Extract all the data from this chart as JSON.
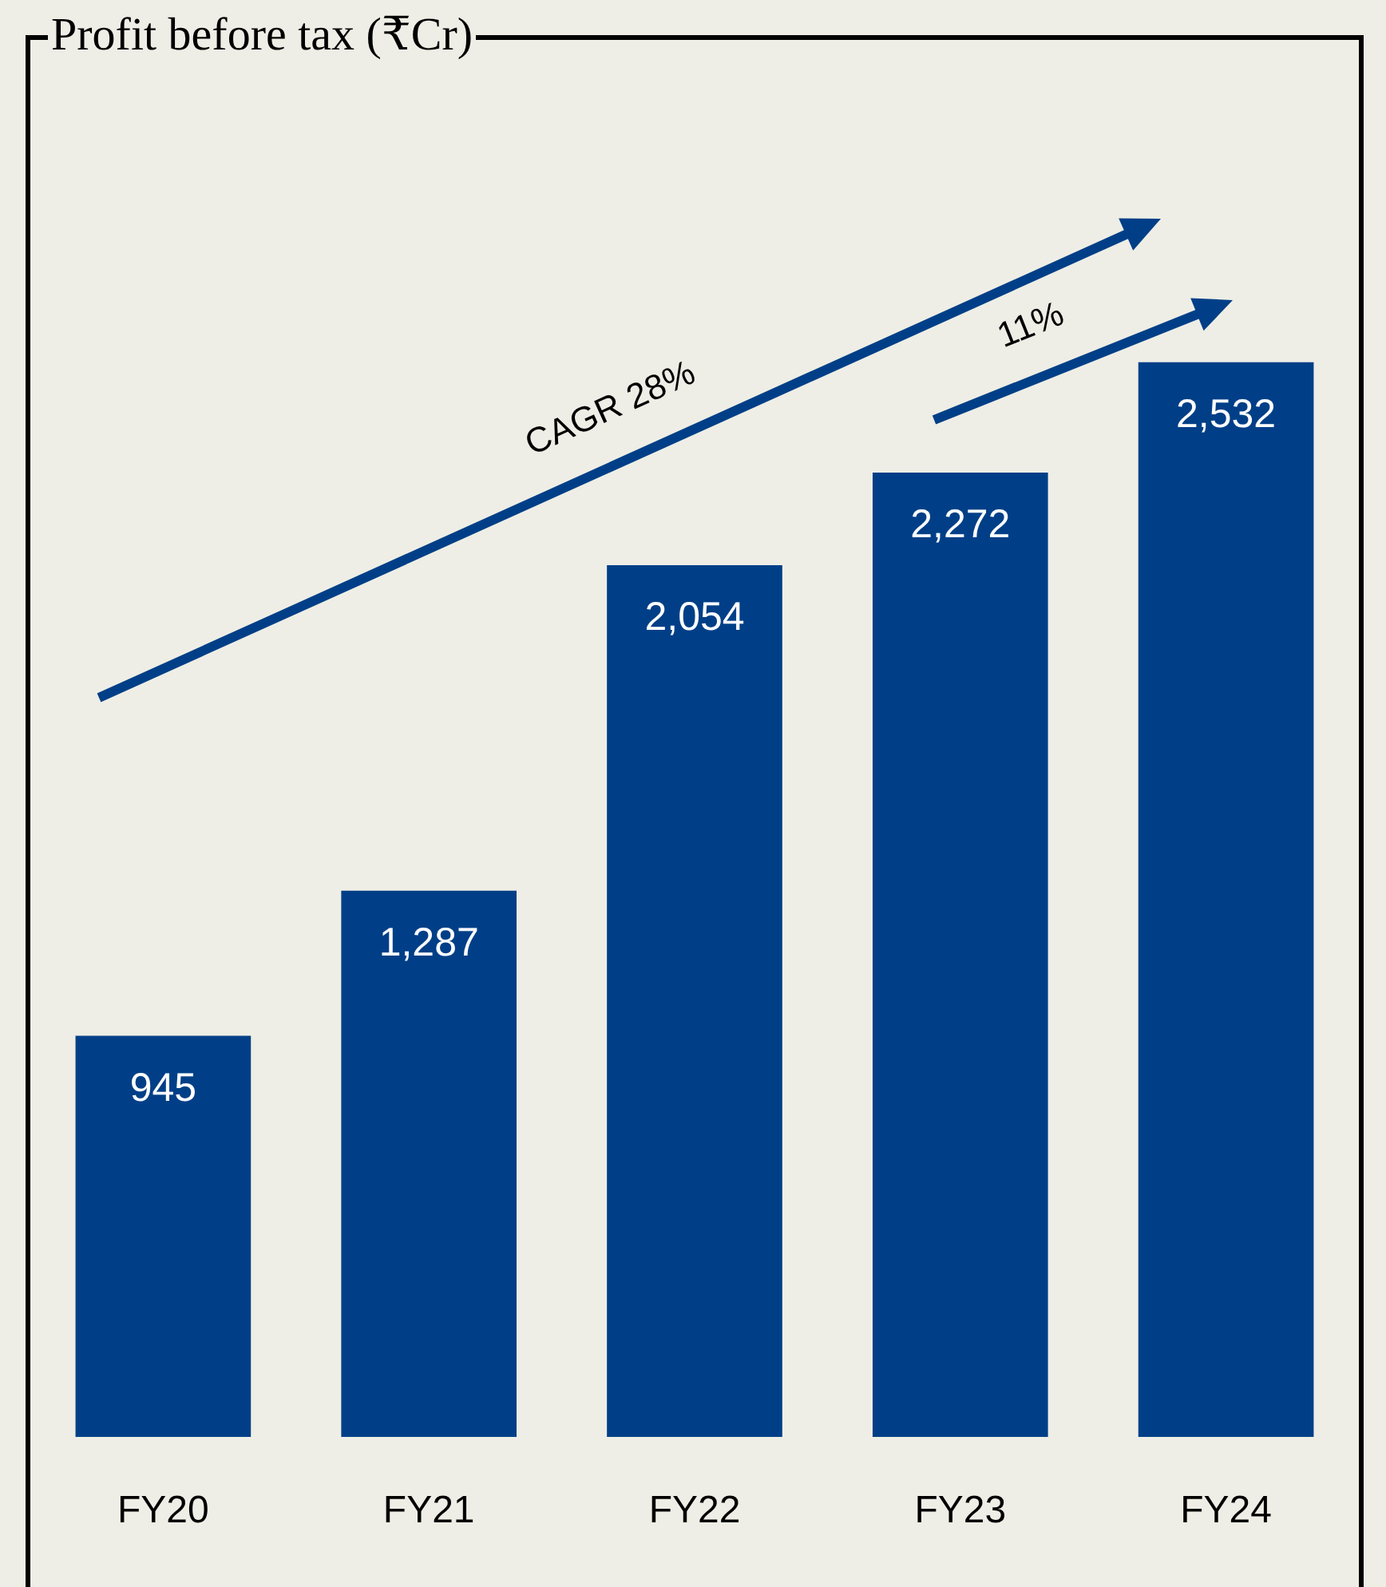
{
  "chart_data": {
    "type": "bar",
    "title": "Profit before tax (₹Cr)",
    "categories": [
      "FY20",
      "FY21",
      "FY22",
      "FY23",
      "FY24"
    ],
    "values": [
      945,
      1287,
      2054,
      2272,
      2532
    ],
    "value_labels": [
      "945",
      "1,287",
      "2,054",
      "2,272",
      "2,532"
    ],
    "color": "#003f87",
    "annotations": [
      "CAGR 28%",
      "11%"
    ]
  }
}
